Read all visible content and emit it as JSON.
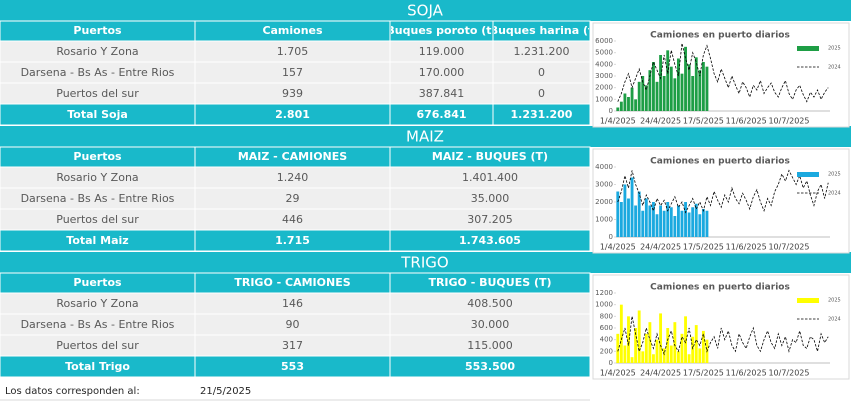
{
  "tables": [
    {
      "title": "SOJA",
      "columns": [
        "Puertos",
        "Camiones",
        "Buques poroto (t)",
        "Buques harina (t"
      ],
      "rows": [
        [
          "Rosario Y Zona",
          "1.705",
          "119.000",
          "1.231.200"
        ],
        [
          "Darsena - Bs As - Entre Rios",
          "157",
          "170.000",
          "0"
        ],
        [
          "Puertos del sur",
          "939",
          "387.841",
          "0"
        ]
      ],
      "total": [
        "Total Soja",
        "2.801",
        "676.841",
        "1.231.200"
      ]
    },
    {
      "title": "MAIZ",
      "columns": [
        "Puertos",
        "MAIZ - CAMIONES",
        "MAIZ - BUQUES (T)"
      ],
      "rows": [
        [
          "Rosario Y Zona",
          "1.240",
          "1.401.400"
        ],
        [
          "Darsena - Bs As - Entre Rios",
          "29",
          "35.000"
        ],
        [
          "Puertos del sur",
          "446",
          "307.205"
        ]
      ],
      "total": [
        "Total Maiz",
        "1.715",
        "1.743.605"
      ]
    },
    {
      "title": "TRIGO",
      "columns": [
        "Puertos",
        "TRIGO - CAMIONES",
        "TRIGO - BUQUES (T)"
      ],
      "rows": [
        [
          "Rosario Y Zona",
          "146",
          "408.500"
        ],
        [
          "Darsena - Bs As - Entre Rios",
          "90",
          "30.000"
        ],
        [
          "Puertos del sur",
          "317",
          "115.000"
        ]
      ],
      "total": [
        "Total Trigo",
        "553",
        "553.500"
      ]
    }
  ],
  "footer": {
    "label": "Los datos corresponden al:",
    "date": "21/5/2025"
  },
  "chart_data": [
    {
      "type": "bar",
      "title": "Camiones en puerto diarios",
      "legend": "right",
      "categories": [
        "1/4/2025",
        null,
        null,
        null,
        null,
        null,
        null,
        null,
        null,
        null,
        null,
        null,
        "24/4/2025",
        null,
        null,
        null,
        null,
        null,
        null,
        null,
        null,
        null,
        null,
        null,
        "17/5/2025",
        null,
        null,
        null,
        null,
        null,
        null,
        null,
        null,
        null,
        null,
        null,
        "11/6/2025",
        null,
        null,
        null,
        null,
        null,
        null,
        null,
        null,
        null,
        null,
        null,
        "10/7/2025",
        null,
        null,
        null,
        null,
        null,
        null,
        null,
        null,
        null,
        null,
        null
      ],
      "ylim": [
        0,
        6000
      ],
      "yticks": [
        0,
        1000,
        2000,
        3000,
        4000,
        5000,
        6000
      ],
      "series": [
        {
          "name": "2025",
          "kind": "bar",
          "color": "#1e9e45",
          "values": [
            300,
            800,
            1500,
            1200,
            2000,
            1000,
            2500,
            3000,
            2200,
            3500,
            4200,
            2500,
            4800,
            3000,
            5200,
            3800,
            2800,
            4500,
            3200,
            5500,
            4000,
            3000,
            4600,
            3500,
            4200,
            3800,
            null,
            null,
            null,
            null,
            null,
            null,
            null,
            null,
            null,
            null,
            null,
            null,
            null,
            null,
            null,
            null,
            null,
            null,
            null,
            null,
            null,
            null,
            null,
            null,
            null,
            null,
            null,
            null,
            null,
            null,
            null,
            null,
            null,
            null
          ]
        },
        {
          "name": "2024",
          "kind": "line",
          "color": "#000000",
          "values": [
            800,
            1500,
            2500,
            3200,
            2000,
            2800,
            3600,
            2500,
            1800,
            3000,
            4200,
            3500,
            2800,
            4800,
            3200,
            5200,
            4000,
            3000,
            5800,
            4500,
            3500,
            5000,
            4200,
            3000,
            4800,
            5600,
            4500,
            3200,
            2500,
            3600,
            2800,
            2000,
            3000,
            2200,
            1500,
            2500,
            2000,
            1200,
            2200,
            1800,
            2600,
            1500,
            2000,
            2400,
            1600,
            1200,
            2000,
            2600,
            1500,
            1000,
            1800,
            2200,
            1400,
            800,
            1600,
            1200,
            1800,
            1000,
            1600,
            2000
          ]
        }
      ]
    },
    {
      "type": "bar",
      "title": "Camiones en puerto diarios",
      "legend": "right",
      "categories": [
        "1/4/2025",
        null,
        null,
        null,
        null,
        null,
        null,
        null,
        null,
        null,
        null,
        null,
        "24/4/2025",
        null,
        null,
        null,
        null,
        null,
        null,
        null,
        null,
        null,
        null,
        null,
        "17/5/2025",
        null,
        null,
        null,
        null,
        null,
        null,
        null,
        null,
        null,
        null,
        null,
        "11/6/2025",
        null,
        null,
        null,
        null,
        null,
        null,
        null,
        null,
        null,
        null,
        null,
        "10/7/2025",
        null,
        null,
        null,
        null,
        null,
        null,
        null,
        null,
        null,
        null,
        null
      ],
      "ylim": [
        0,
        4000
      ],
      "yticks": [
        0,
        1000,
        2000,
        3000,
        4000
      ],
      "series": [
        {
          "name": "2025",
          "kind": "bar",
          "color": "#1ba9df",
          "values": [
            2600,
            2000,
            3000,
            2200,
            3400,
            1800,
            2600,
            1500,
            2200,
            1800,
            2000,
            1300,
            1800,
            1500,
            2000,
            1700,
            1200,
            1800,
            1500,
            2000,
            1400,
            1700,
            1900,
            1300,
            1600,
            1500,
            null,
            null,
            null,
            null,
            null,
            null,
            null,
            null,
            null,
            null,
            null,
            null,
            null,
            null,
            null,
            null,
            null,
            null,
            null,
            null,
            null,
            null,
            null,
            null,
            null,
            null,
            null,
            null,
            null,
            null,
            null,
            null,
            null,
            null
          ]
        },
        {
          "name": "2024",
          "kind": "line",
          "color": "#000000",
          "values": [
            2000,
            2600,
            3500,
            2800,
            3800,
            3000,
            2500,
            1800,
            2400,
            2000,
            1500,
            2200,
            1800,
            2100,
            1500,
            1900,
            2300,
            1700,
            2000,
            1400,
            1800,
            2200,
            1600,
            2000,
            1500,
            2300,
            1800,
            2600,
            2100,
            1700,
            2400,
            2000,
            2800,
            2200,
            1900,
            2500,
            2100,
            1600,
            2300,
            2700,
            2000,
            1500,
            2200,
            1800,
            2600,
            3000,
            3600,
            3200,
            3800,
            3400,
            3000,
            3500,
            2800,
            3200,
            2400,
            1800,
            2600,
            3000,
            2200,
            3100
          ]
        }
      ]
    },
    {
      "type": "bar",
      "title": "Camiones en puerto diarios",
      "legend": "right",
      "categories": [
        "1/4/2025",
        null,
        null,
        null,
        null,
        null,
        null,
        null,
        null,
        null,
        null,
        null,
        "24/4/2025",
        null,
        null,
        null,
        null,
        null,
        null,
        null,
        null,
        null,
        null,
        null,
        "17/5/2025",
        null,
        null,
        null,
        null,
        null,
        null,
        null,
        null,
        null,
        null,
        null,
        "11/6/2025",
        null,
        null,
        null,
        null,
        null,
        null,
        null,
        null,
        null,
        null,
        null,
        "10/7/2025",
        null,
        null,
        null,
        null,
        null,
        null,
        null,
        null,
        null,
        null,
        null
      ],
      "ylim": [
        0,
        1200
      ],
      "yticks": [
        0,
        200,
        400,
        600,
        800,
        1000,
        1200
      ],
      "series": [
        {
          "name": "2025",
          "kind": "bar",
          "color": "#ffff00",
          "values": [
            500,
            1000,
            300,
            800,
            100,
            600,
            900,
            200,
            500,
            700,
            150,
            400,
            850,
            250,
            600,
            300,
            700,
            200,
            500,
            800,
            150,
            450,
            650,
            250,
            550,
            400,
            null,
            null,
            null,
            null,
            null,
            null,
            null,
            null,
            null,
            null,
            null,
            null,
            null,
            null,
            null,
            null,
            null,
            null,
            null,
            null,
            null,
            null,
            null,
            null,
            null,
            null,
            null,
            null,
            null,
            null,
            null,
            null,
            null,
            null
          ]
        },
        {
          "name": "2024",
          "kind": "line",
          "color": "#000000",
          "values": [
            200,
            400,
            600,
            300,
            800,
            500,
            200,
            350,
            600,
            400,
            250,
            500,
            300,
            150,
            400,
            550,
            300,
            200,
            450,
            350,
            600,
            250,
            400,
            300,
            500,
            200,
            350,
            450,
            250,
            600,
            400,
            550,
            300,
            200,
            500,
            350,
            250,
            450,
            600,
            300,
            200,
            400,
            550,
            350,
            250,
            500,
            300,
            450,
            200,
            400,
            350,
            550,
            300,
            250,
            450,
            400,
            200,
            500,
            350,
            450
          ]
        }
      ]
    }
  ]
}
